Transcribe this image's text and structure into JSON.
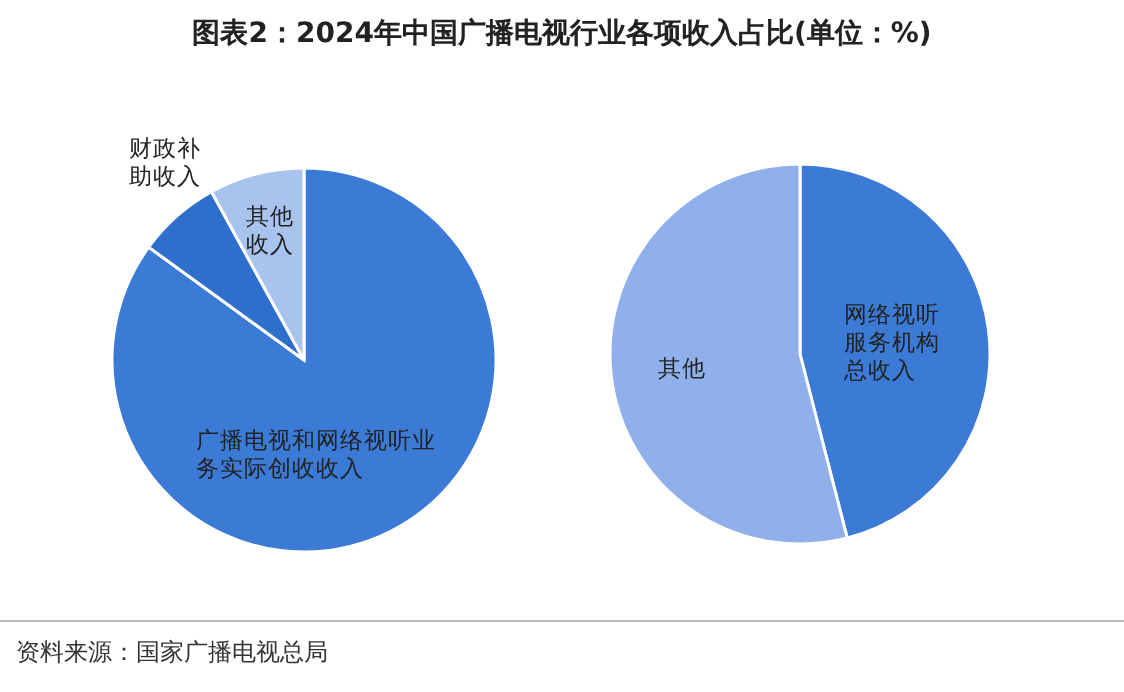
{
  "chart_data": [
    {
      "type": "pie",
      "title": "图表2：2024年中国广播电视行业各项收入占比(单位：%)",
      "categories": [
        "广播电视和网络视听业务实际创收收入",
        "财政补助收入",
        "其他收入"
      ],
      "values": [
        85,
        7,
        8
      ],
      "colors": [
        "#3b7bd6",
        "#2f6fcc",
        "#a9c3ef"
      ],
      "annotations": [
        "资料来源：国家广播电视总局"
      ]
    },
    {
      "type": "pie",
      "categories": [
        "网络视听服务机构总收入",
        "其他"
      ],
      "values": [
        46,
        54
      ],
      "colors": [
        "#3b7bd6",
        "#8fb0ea"
      ]
    }
  ]
}
